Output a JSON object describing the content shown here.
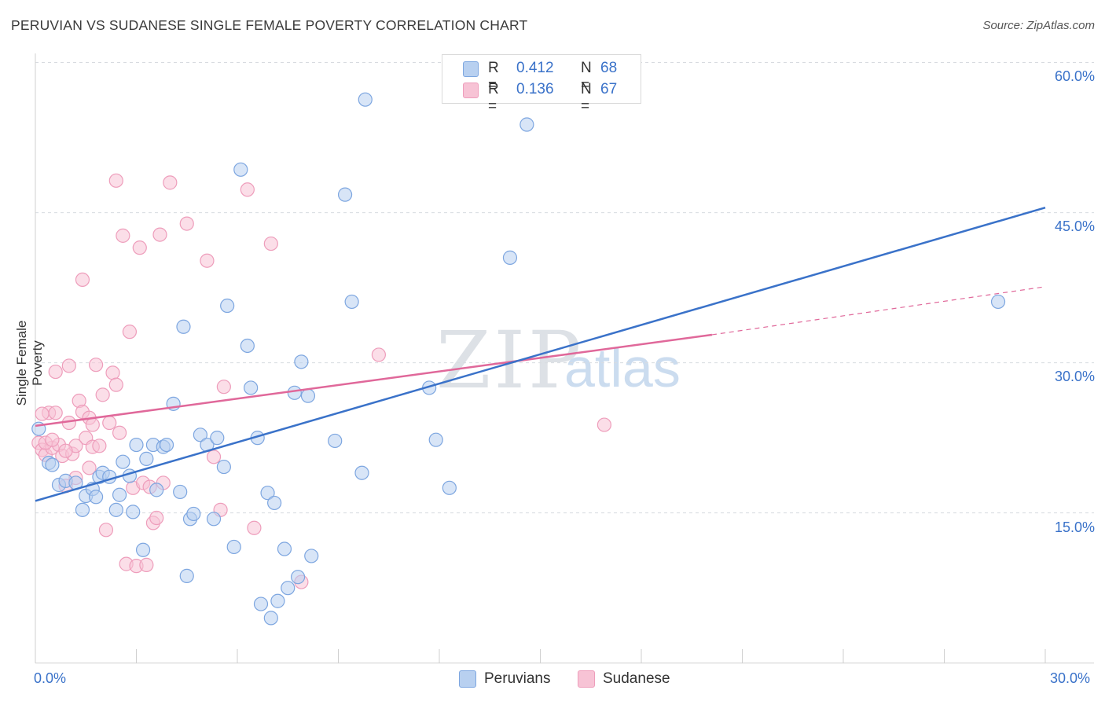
{
  "title": "PERUVIAN VS SUDANESE SINGLE FEMALE POVERTY CORRELATION CHART",
  "source": "Source: ZipAtlas.com",
  "watermark": {
    "zip": "ZIP",
    "atlas": "atlas"
  },
  "colors": {
    "blue": "#3a72c9",
    "blue_fill": "#b8d0f0",
    "blue_stroke": "#7da6e0",
    "pink": "#e0689a",
    "pink_fill": "#f7c3d5",
    "pink_stroke": "#ee9dbb",
    "grid": "#d8dbe0"
  },
  "legend": {
    "r_label": "R =",
    "n_label": "N =",
    "peruvians": {
      "r": "0.412",
      "n": "68"
    },
    "sudanese": {
      "r": "0.136",
      "n": "67"
    }
  },
  "bottom_legend": {
    "peruvians": "Peruvians",
    "sudanese": "Sudanese"
  },
  "axes": {
    "y_title": "Single Female Poverty",
    "y_ticks": [
      "60.0%",
      "45.0%",
      "30.0%",
      "15.0%"
    ],
    "x_min_label": "0.0%",
    "x_max_label": "30.0%"
  },
  "chart_data": {
    "type": "scatter",
    "title": "PERUVIAN VS SUDANESE SINGLE FEMALE POVERTY CORRELATION CHART",
    "xlabel": "",
    "ylabel": "Single Female Poverty",
    "xlim": [
      0,
      30
    ],
    "ylim": [
      0,
      61
    ],
    "y_ticks": [
      15,
      30,
      45,
      60
    ],
    "grid": true,
    "legend_placement": "top-center",
    "series": [
      {
        "name": "Peruvians",
        "r": 0.412,
        "n": 68,
        "trend": {
          "x": [
            0,
            30
          ],
          "y": [
            16.2,
            45.5
          ]
        },
        "points": [
          [
            0.1,
            23.4
          ],
          [
            0.4,
            20.0
          ],
          [
            0.5,
            19.8
          ],
          [
            0.7,
            17.8
          ],
          [
            0.9,
            18.2
          ],
          [
            1.2,
            18.0
          ],
          [
            1.4,
            15.3
          ],
          [
            1.5,
            16.7
          ],
          [
            1.7,
            17.4
          ],
          [
            1.8,
            16.6
          ],
          [
            1.9,
            18.6
          ],
          [
            2.0,
            19.0
          ],
          [
            2.2,
            18.6
          ],
          [
            2.4,
            15.3
          ],
          [
            2.5,
            16.8
          ],
          [
            2.6,
            20.1
          ],
          [
            2.8,
            18.7
          ],
          [
            2.9,
            15.1
          ],
          [
            3.0,
            21.8
          ],
          [
            3.2,
            11.3
          ],
          [
            3.3,
            20.4
          ],
          [
            3.5,
            21.8
          ],
          [
            3.6,
            17.3
          ],
          [
            3.8,
            21.6
          ],
          [
            3.9,
            21.8
          ],
          [
            4.1,
            25.9
          ],
          [
            4.3,
            17.1
          ],
          [
            4.4,
            33.6
          ],
          [
            4.5,
            8.7
          ],
          [
            4.6,
            14.4
          ],
          [
            4.7,
            14.9
          ],
          [
            4.9,
            22.8
          ],
          [
            5.1,
            21.8
          ],
          [
            5.3,
            14.4
          ],
          [
            5.4,
            22.5
          ],
          [
            5.6,
            19.6
          ],
          [
            5.7,
            35.7
          ],
          [
            5.9,
            11.6
          ],
          [
            6.1,
            49.3
          ],
          [
            6.3,
            31.7
          ],
          [
            6.4,
            27.5
          ],
          [
            6.6,
            22.5
          ],
          [
            6.7,
            5.9
          ],
          [
            6.9,
            17.0
          ],
          [
            7.1,
            16.0
          ],
          [
            7.2,
            6.2
          ],
          [
            7.0,
            4.5
          ],
          [
            7.4,
            11.4
          ],
          [
            7.5,
            7.5
          ],
          [
            7.7,
            27.0
          ],
          [
            7.8,
            8.6
          ],
          [
            7.9,
            30.1
          ],
          [
            8.1,
            26.7
          ],
          [
            8.2,
            10.7
          ],
          [
            8.9,
            22.2
          ],
          [
            9.2,
            46.8
          ],
          [
            9.4,
            36.1
          ],
          [
            9.7,
            19.0
          ],
          [
            9.8,
            56.3
          ],
          [
            11.7,
            27.5
          ],
          [
            11.9,
            22.3
          ],
          [
            12.3,
            17.5
          ],
          [
            14.1,
            40.5
          ],
          [
            14.6,
            53.8
          ],
          [
            28.6,
            36.1
          ]
        ]
      },
      {
        "name": "Sudanese",
        "r": 0.136,
        "n": 67,
        "trend": {
          "x": [
            0,
            20.1
          ],
          "y": [
            23.7,
            32.8
          ]
        },
        "trend_extension": {
          "x": [
            20.1,
            30
          ],
          "y": [
            32.8,
            37.6
          ]
        },
        "points": [
          [
            0.1,
            22.0
          ],
          [
            0.2,
            21.3
          ],
          [
            0.3,
            20.8
          ],
          [
            0.4,
            25.0
          ],
          [
            0.5,
            21.5
          ],
          [
            0.6,
            29.1
          ],
          [
            0.7,
            21.8
          ],
          [
            0.8,
            20.7
          ],
          [
            0.9,
            17.7
          ],
          [
            1.0,
            29.7
          ],
          [
            1.1,
            20.9
          ],
          [
            1.2,
            18.5
          ],
          [
            1.3,
            26.2
          ],
          [
            1.4,
            25.1
          ],
          [
            1.5,
            22.5
          ],
          [
            1.6,
            24.5
          ],
          [
            1.7,
            21.6
          ],
          [
            1.8,
            29.8
          ],
          [
            1.9,
            21.7
          ],
          [
            2.0,
            26.8
          ],
          [
            2.1,
            13.3
          ],
          [
            2.2,
            24.0
          ],
          [
            2.3,
            29.0
          ],
          [
            2.4,
            27.8
          ],
          [
            2.5,
            23.0
          ],
          [
            2.6,
            42.7
          ],
          [
            2.7,
            9.9
          ],
          [
            2.8,
            33.1
          ],
          [
            2.9,
            17.5
          ],
          [
            3.0,
            9.7
          ],
          [
            3.1,
            41.5
          ],
          [
            3.2,
            18.0
          ],
          [
            3.3,
            9.8
          ],
          [
            3.4,
            17.6
          ],
          [
            3.5,
            14.0
          ],
          [
            3.6,
            14.5
          ],
          [
            3.7,
            42.8
          ],
          [
            3.8,
            18.0
          ],
          [
            4.0,
            48.0
          ],
          [
            2.4,
            48.2
          ],
          [
            1.4,
            38.3
          ],
          [
            4.5,
            43.9
          ],
          [
            5.1,
            40.2
          ],
          [
            5.3,
            20.6
          ],
          [
            5.5,
            15.3
          ],
          [
            5.6,
            27.6
          ],
          [
            6.3,
            47.3
          ],
          [
            6.5,
            13.5
          ],
          [
            7.0,
            41.9
          ],
          [
            7.9,
            8.1
          ],
          [
            10.2,
            30.8
          ],
          [
            16.9,
            23.8
          ],
          [
            0.2,
            24.9
          ],
          [
            0.3,
            22.0
          ],
          [
            0.5,
            22.3
          ],
          [
            0.6,
            25.0
          ],
          [
            1.0,
            24.0
          ],
          [
            1.2,
            21.7
          ],
          [
            1.6,
            19.5
          ],
          [
            0.9,
            21.2
          ],
          [
            1.7,
            23.8
          ]
        ]
      }
    ]
  }
}
